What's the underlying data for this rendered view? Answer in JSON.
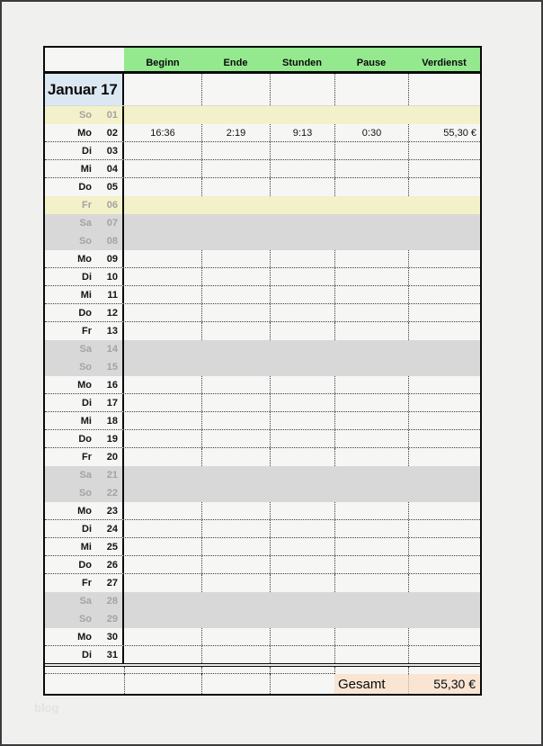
{
  "title": "Januar 17",
  "columns": [
    "Beginn",
    "Ende",
    "Stunden",
    "Pause",
    "Verdienst"
  ],
  "days": [
    {
      "weekday": "So",
      "date": "01",
      "kind": "holiday",
      "beginn": "",
      "ende": "",
      "stunden": "",
      "pause": "",
      "verdienst": ""
    },
    {
      "weekday": "Mo",
      "date": "02",
      "kind": "work",
      "beginn": "16:36",
      "ende": "2:19",
      "stunden": "9:13",
      "pause": "0:30",
      "verdienst": "55,30 €"
    },
    {
      "weekday": "Di",
      "date": "03",
      "kind": "work",
      "beginn": "",
      "ende": "",
      "stunden": "",
      "pause": "",
      "verdienst": ""
    },
    {
      "weekday": "Mi",
      "date": "04",
      "kind": "work",
      "beginn": "",
      "ende": "",
      "stunden": "",
      "pause": "",
      "verdienst": ""
    },
    {
      "weekday": "Do",
      "date": "05",
      "kind": "work",
      "beginn": "",
      "ende": "",
      "stunden": "",
      "pause": "",
      "verdienst": ""
    },
    {
      "weekday": "Fr",
      "date": "06",
      "kind": "holiday",
      "beginn": "",
      "ende": "",
      "stunden": "",
      "pause": "",
      "verdienst": ""
    },
    {
      "weekday": "Sa",
      "date": "07",
      "kind": "weekend",
      "beginn": "",
      "ende": "",
      "stunden": "",
      "pause": "",
      "verdienst": ""
    },
    {
      "weekday": "So",
      "date": "08",
      "kind": "weekend",
      "beginn": "",
      "ende": "",
      "stunden": "",
      "pause": "",
      "verdienst": ""
    },
    {
      "weekday": "Mo",
      "date": "09",
      "kind": "work",
      "beginn": "",
      "ende": "",
      "stunden": "",
      "pause": "",
      "verdienst": ""
    },
    {
      "weekday": "Di",
      "date": "10",
      "kind": "work",
      "beginn": "",
      "ende": "",
      "stunden": "",
      "pause": "",
      "verdienst": ""
    },
    {
      "weekday": "Mi",
      "date": "11",
      "kind": "work",
      "beginn": "",
      "ende": "",
      "stunden": "",
      "pause": "",
      "verdienst": ""
    },
    {
      "weekday": "Do",
      "date": "12",
      "kind": "work",
      "beginn": "",
      "ende": "",
      "stunden": "",
      "pause": "",
      "verdienst": ""
    },
    {
      "weekday": "Fr",
      "date": "13",
      "kind": "work",
      "beginn": "",
      "ende": "",
      "stunden": "",
      "pause": "",
      "verdienst": ""
    },
    {
      "weekday": "Sa",
      "date": "14",
      "kind": "weekend",
      "beginn": "",
      "ende": "",
      "stunden": "",
      "pause": "",
      "verdienst": ""
    },
    {
      "weekday": "So",
      "date": "15",
      "kind": "weekend",
      "beginn": "",
      "ende": "",
      "stunden": "",
      "pause": "",
      "verdienst": ""
    },
    {
      "weekday": "Mo",
      "date": "16",
      "kind": "work",
      "beginn": "",
      "ende": "",
      "stunden": "",
      "pause": "",
      "verdienst": ""
    },
    {
      "weekday": "Di",
      "date": "17",
      "kind": "work",
      "beginn": "",
      "ende": "",
      "stunden": "",
      "pause": "",
      "verdienst": ""
    },
    {
      "weekday": "Mi",
      "date": "18",
      "kind": "work",
      "beginn": "",
      "ende": "",
      "stunden": "",
      "pause": "",
      "verdienst": ""
    },
    {
      "weekday": "Do",
      "date": "19",
      "kind": "work",
      "beginn": "",
      "ende": "",
      "stunden": "",
      "pause": "",
      "verdienst": ""
    },
    {
      "weekday": "Fr",
      "date": "20",
      "kind": "work",
      "beginn": "",
      "ende": "",
      "stunden": "",
      "pause": "",
      "verdienst": ""
    },
    {
      "weekday": "Sa",
      "date": "21",
      "kind": "weekend",
      "beginn": "",
      "ende": "",
      "stunden": "",
      "pause": "",
      "verdienst": ""
    },
    {
      "weekday": "So",
      "date": "22",
      "kind": "weekend",
      "beginn": "",
      "ende": "",
      "stunden": "",
      "pause": "",
      "verdienst": ""
    },
    {
      "weekday": "Mo",
      "date": "23",
      "kind": "work",
      "beginn": "",
      "ende": "",
      "stunden": "",
      "pause": "",
      "verdienst": ""
    },
    {
      "weekday": "Di",
      "date": "24",
      "kind": "work",
      "beginn": "",
      "ende": "",
      "stunden": "",
      "pause": "",
      "verdienst": ""
    },
    {
      "weekday": "Mi",
      "date": "25",
      "kind": "work",
      "beginn": "",
      "ende": "",
      "stunden": "",
      "pause": "",
      "verdienst": ""
    },
    {
      "weekday": "Do",
      "date": "26",
      "kind": "work",
      "beginn": "",
      "ende": "",
      "stunden": "",
      "pause": "",
      "verdienst": ""
    },
    {
      "weekday": "Fr",
      "date": "27",
      "kind": "work",
      "beginn": "",
      "ende": "",
      "stunden": "",
      "pause": "",
      "verdienst": ""
    },
    {
      "weekday": "Sa",
      "date": "28",
      "kind": "weekend",
      "beginn": "",
      "ende": "",
      "stunden": "",
      "pause": "",
      "verdienst": ""
    },
    {
      "weekday": "So",
      "date": "29",
      "kind": "weekend",
      "beginn": "",
      "ende": "",
      "stunden": "",
      "pause": "",
      "verdienst": ""
    },
    {
      "weekday": "Mo",
      "date": "30",
      "kind": "work",
      "beginn": "",
      "ende": "",
      "stunden": "",
      "pause": "",
      "verdienst": ""
    },
    {
      "weekday": "Di",
      "date": "31",
      "kind": "work",
      "beginn": "",
      "ende": "",
      "stunden": "",
      "pause": "",
      "verdienst": ""
    }
  ],
  "summary": {
    "label": "Gesamt",
    "total": "55,30 €"
  },
  "watermark": "blog",
  "colors": {
    "page-bg": "#f0f0ef",
    "frame": "#3c3c3c",
    "row-bg": "#f6f6f5",
    "header-green": "#94e98e",
    "title-blue": "#dbe8f2",
    "holiday-yellow": "#f3f1c9",
    "weekend-gray": "#d8d8d8",
    "total-peach": "#fae5d3",
    "muted-day": "#a3a3a3"
  }
}
